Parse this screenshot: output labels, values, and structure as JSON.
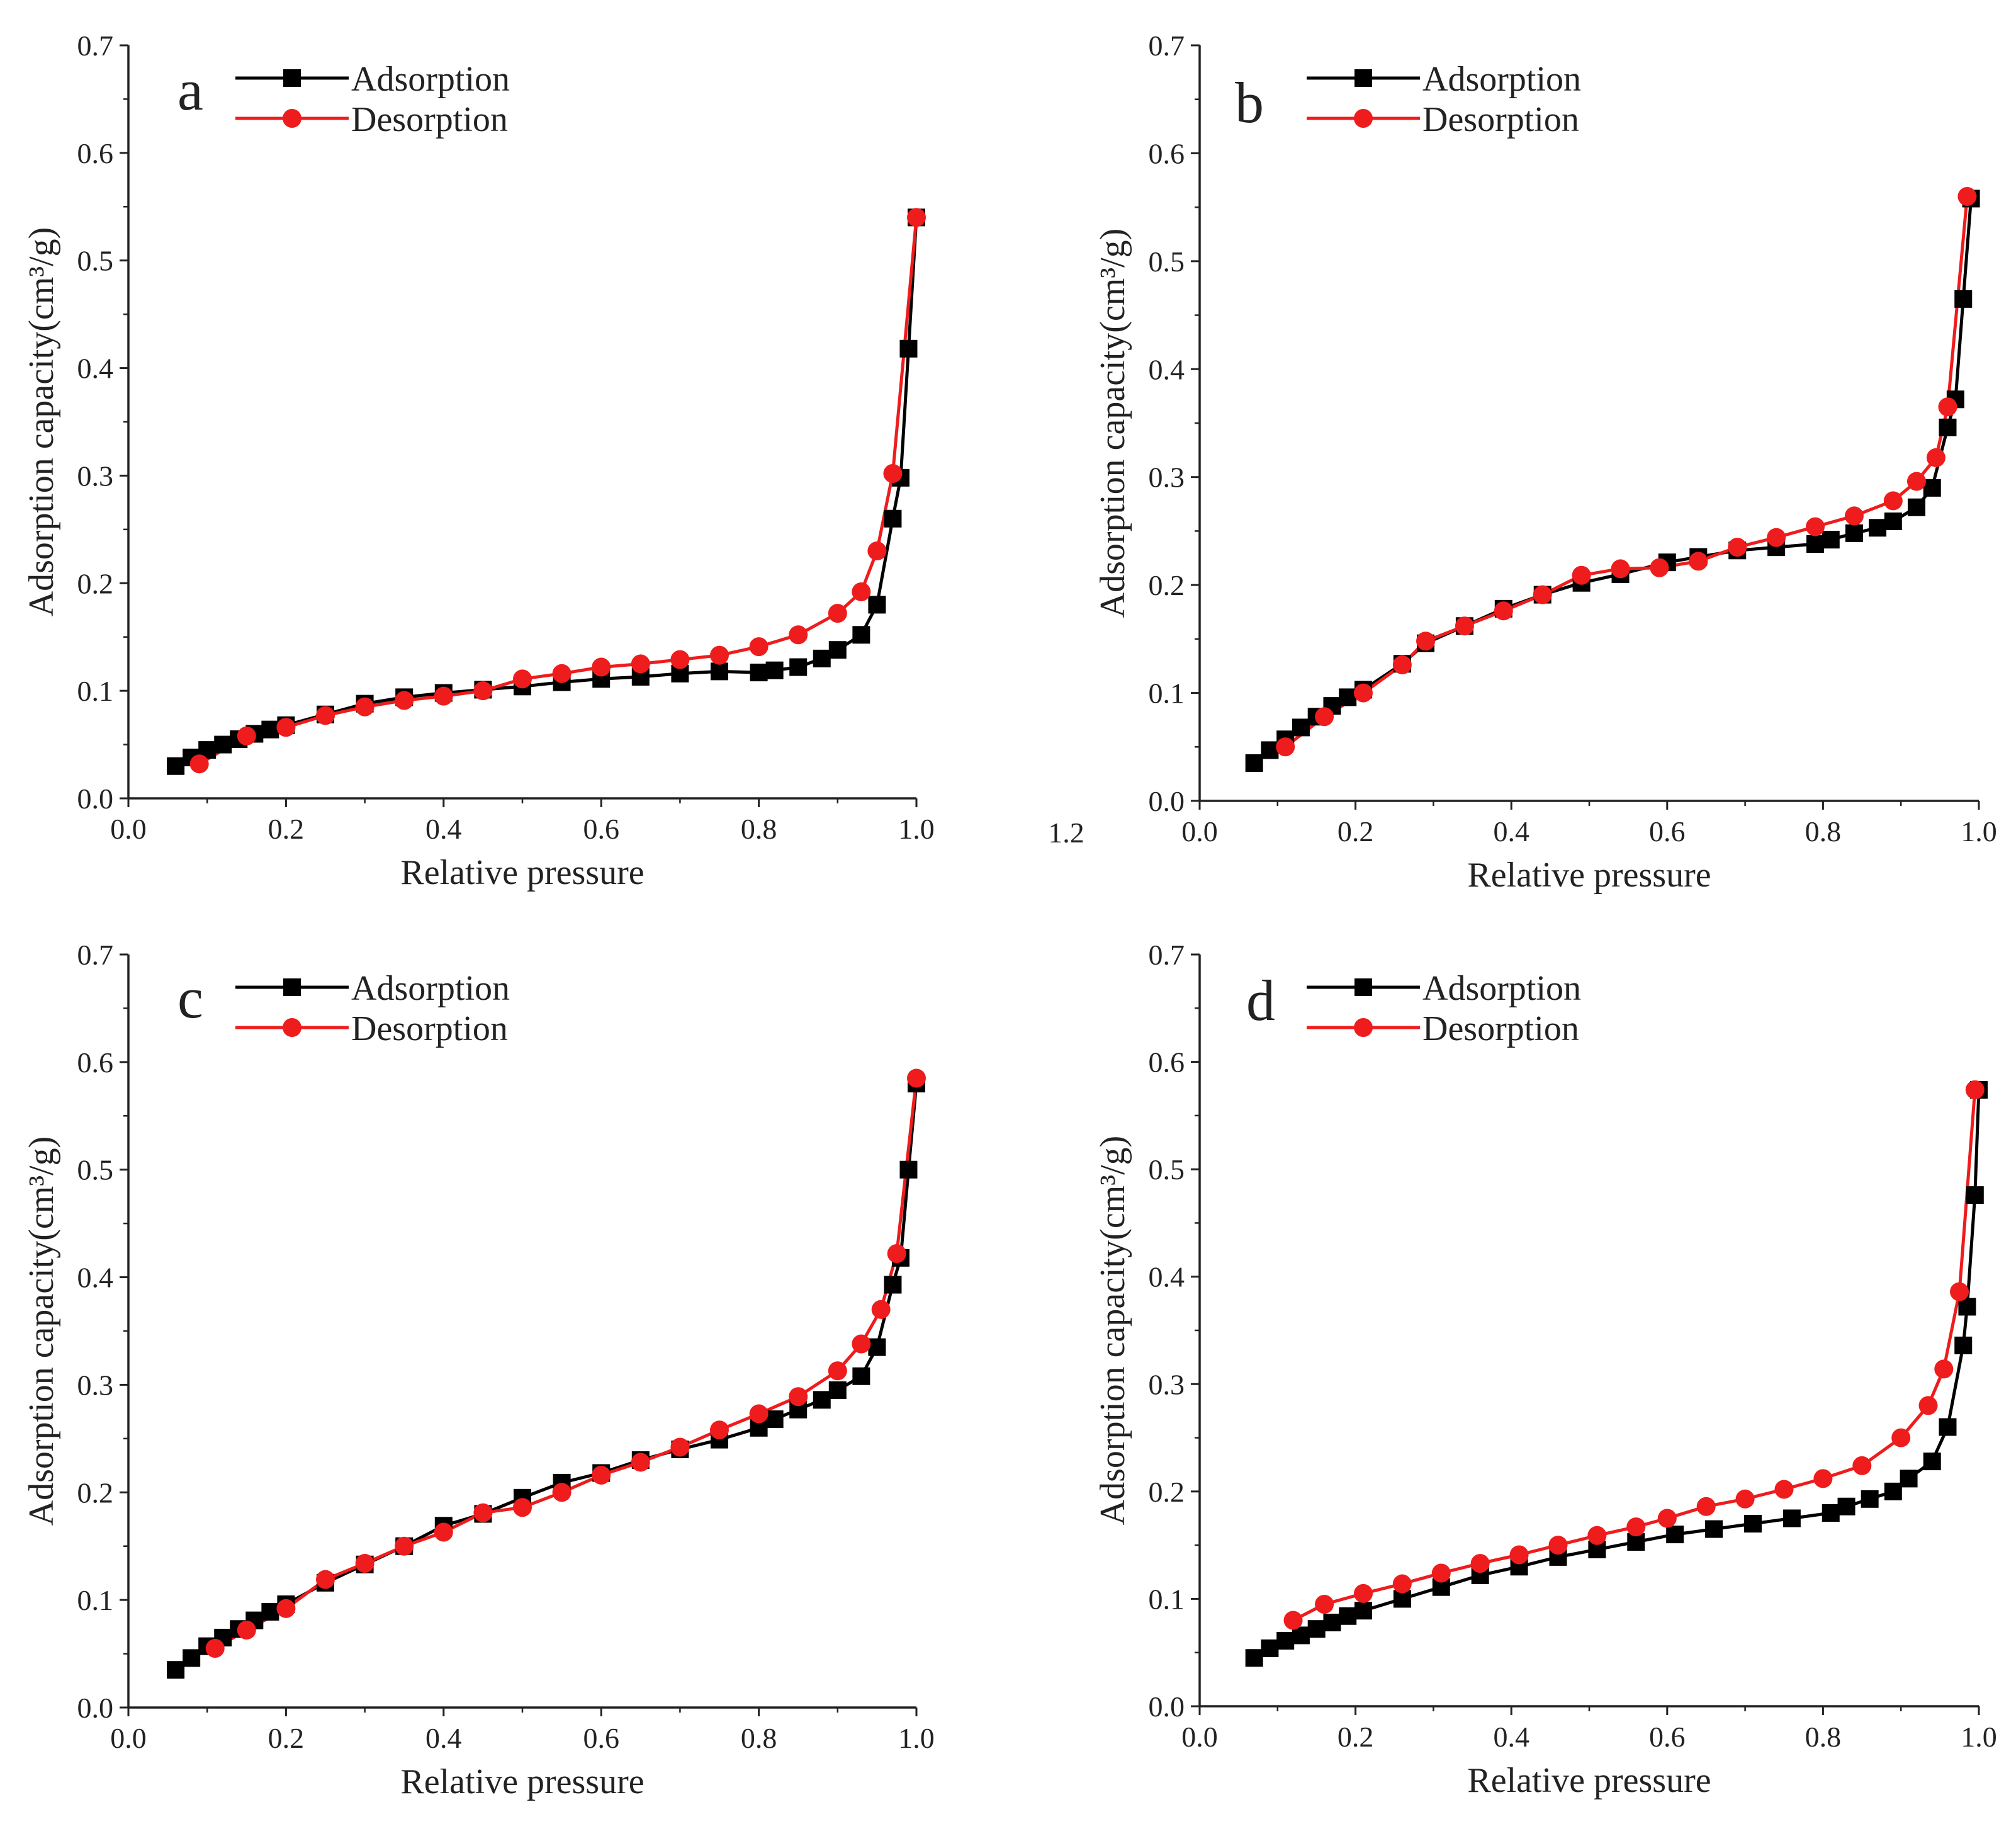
{
  "colors": {
    "adsorption": "#000000",
    "desorption": "#ee1c1c",
    "axis": "#222222"
  },
  "chart_data": [
    {
      "id": "a",
      "type": "line",
      "panel_label": "a",
      "xlabel": "Relative pressure",
      "ylabel": "Adsorption capacity(cm³/g)",
      "xlim": [
        0,
        1.0
      ],
      "ylim": [
        0,
        0.7
      ],
      "xticks": [
        "0.0",
        "0.2",
        "0.4",
        "0.6",
        "0.8",
        "1.0"
      ],
      "yticks": [
        "0.0",
        "0.1",
        "0.2",
        "0.3",
        "0.4",
        "0.5",
        "0.6",
        "0.7"
      ],
      "extra_tick_label": "1.2",
      "legend": [
        "Adsorption",
        "Desorption"
      ],
      "legend_position": "top-left",
      "series": [
        {
          "name": "Adsorption",
          "marker": "square",
          "x": [
            0.06,
            0.08,
            0.1,
            0.12,
            0.14,
            0.16,
            0.18,
            0.2,
            0.25,
            0.3,
            0.35,
            0.4,
            0.45,
            0.5,
            0.55,
            0.6,
            0.65,
            0.7,
            0.75,
            0.8,
            0.82,
            0.85,
            0.88,
            0.9,
            0.93,
            0.95,
            0.97,
            0.98,
            0.99,
            1.0
          ],
          "y": [
            0.03,
            0.038,
            0.045,
            0.05,
            0.055,
            0.06,
            0.064,
            0.068,
            0.078,
            0.088,
            0.094,
            0.098,
            0.101,
            0.104,
            0.108,
            0.111,
            0.113,
            0.116,
            0.118,
            0.117,
            0.119,
            0.122,
            0.13,
            0.138,
            0.152,
            0.18,
            0.26,
            0.298,
            0.418,
            0.54
          ]
        },
        {
          "name": "Desorption",
          "marker": "circle",
          "x": [
            1.0,
            0.97,
            0.95,
            0.93,
            0.9,
            0.85,
            0.8,
            0.75,
            0.7,
            0.65,
            0.6,
            0.55,
            0.5,
            0.45,
            0.4,
            0.35,
            0.3,
            0.25,
            0.2,
            0.15,
            0.09
          ],
          "y": [
            0.54,
            0.302,
            0.23,
            0.192,
            0.172,
            0.152,
            0.141,
            0.133,
            0.129,
            0.125,
            0.122,
            0.116,
            0.111,
            0.1,
            0.095,
            0.091,
            0.085,
            0.077,
            0.066,
            0.058,
            0.032
          ]
        }
      ]
    },
    {
      "id": "b",
      "type": "line",
      "panel_label": "b",
      "xlabel": "Relative pressure",
      "ylabel": "Adsorption capacity(cm³/g)",
      "xlim": [
        0,
        1.0
      ],
      "ylim": [
        0,
        0.7
      ],
      "xticks": [
        "0.0",
        "0.2",
        "0.4",
        "0.6",
        "0.8",
        "1.0"
      ],
      "yticks": [
        "0.0",
        "0.1",
        "0.2",
        "0.3",
        "0.4",
        "0.5",
        "0.6",
        "0.7"
      ],
      "legend": [
        "Adsorption",
        "Desorption"
      ],
      "legend_position": "top-left",
      "series": [
        {
          "name": "Adsorption",
          "marker": "square",
          "x": [
            0.07,
            0.09,
            0.11,
            0.13,
            0.15,
            0.17,
            0.19,
            0.21,
            0.26,
            0.29,
            0.34,
            0.39,
            0.44,
            0.49,
            0.54,
            0.6,
            0.64,
            0.69,
            0.74,
            0.79,
            0.81,
            0.84,
            0.87,
            0.89,
            0.92,
            0.94,
            0.96,
            0.97,
            0.98,
            0.99
          ],
          "y": [
            0.035,
            0.047,
            0.057,
            0.068,
            0.078,
            0.088,
            0.096,
            0.103,
            0.127,
            0.146,
            0.162,
            0.178,
            0.191,
            0.202,
            0.21,
            0.221,
            0.226,
            0.232,
            0.235,
            0.238,
            0.242,
            0.248,
            0.253,
            0.259,
            0.272,
            0.29,
            0.346,
            0.372,
            0.465,
            0.558
          ]
        },
        {
          "name": "Desorption",
          "marker": "circle",
          "x": [
            0.985,
            0.96,
            0.945,
            0.92,
            0.89,
            0.84,
            0.79,
            0.74,
            0.69,
            0.64,
            0.59,
            0.54,
            0.49,
            0.44,
            0.39,
            0.34,
            0.29,
            0.26,
            0.21,
            0.16,
            0.11
          ],
          "y": [
            0.56,
            0.365,
            0.318,
            0.296,
            0.278,
            0.264,
            0.254,
            0.244,
            0.235,
            0.222,
            0.216,
            0.215,
            0.209,
            0.191,
            0.176,
            0.162,
            0.148,
            0.126,
            0.1,
            0.078,
            0.05
          ]
        }
      ]
    },
    {
      "id": "c",
      "type": "line",
      "panel_label": "c",
      "xlabel": "Relative pressure",
      "ylabel": "Adsorption capacity(cm³/g)",
      "xlim": [
        0,
        1.0
      ],
      "ylim": [
        0,
        0.7
      ],
      "xticks": [
        "0.0",
        "0.2",
        "0.4",
        "0.6",
        "0.8",
        "1.0"
      ],
      "yticks": [
        "0.0",
        "0.1",
        "0.2",
        "0.3",
        "0.4",
        "0.5",
        "0.6",
        "0.7"
      ],
      "legend": [
        "Adsorption",
        "Desorption"
      ],
      "legend_position": "top-left",
      "series": [
        {
          "name": "Adsorption",
          "marker": "square",
          "x": [
            0.06,
            0.08,
            0.1,
            0.12,
            0.14,
            0.16,
            0.18,
            0.2,
            0.25,
            0.3,
            0.35,
            0.4,
            0.45,
            0.5,
            0.55,
            0.6,
            0.65,
            0.7,
            0.75,
            0.8,
            0.82,
            0.85,
            0.88,
            0.9,
            0.93,
            0.95,
            0.97,
            0.98,
            0.99,
            1.0
          ],
          "y": [
            0.035,
            0.046,
            0.057,
            0.065,
            0.073,
            0.081,
            0.089,
            0.096,
            0.116,
            0.133,
            0.15,
            0.169,
            0.18,
            0.195,
            0.209,
            0.218,
            0.23,
            0.24,
            0.249,
            0.26,
            0.268,
            0.277,
            0.286,
            0.295,
            0.308,
            0.335,
            0.393,
            0.418,
            0.5,
            0.58
          ]
        },
        {
          "name": "Desorption",
          "marker": "circle",
          "x": [
            1.0,
            0.975,
            0.955,
            0.93,
            0.9,
            0.85,
            0.8,
            0.75,
            0.7,
            0.65,
            0.6,
            0.55,
            0.5,
            0.45,
            0.4,
            0.35,
            0.3,
            0.25,
            0.2,
            0.15,
            0.11
          ],
          "y": [
            0.585,
            0.422,
            0.37,
            0.338,
            0.313,
            0.289,
            0.273,
            0.258,
            0.242,
            0.228,
            0.216,
            0.2,
            0.186,
            0.181,
            0.163,
            0.15,
            0.134,
            0.119,
            0.092,
            0.072,
            0.055
          ]
        }
      ]
    },
    {
      "id": "d",
      "type": "line",
      "panel_label": "d",
      "xlabel": "Relative pressure",
      "ylabel": "Adsorption capacity(cm³/g)",
      "xlim": [
        0,
        1.0
      ],
      "ylim": [
        0,
        0.7
      ],
      "xticks": [
        "0.0",
        "0.2",
        "0.4",
        "0.6",
        "0.8",
        "1.0"
      ],
      "yticks": [
        "0.0",
        "0.1",
        "0.2",
        "0.3",
        "0.4",
        "0.5",
        "0.6",
        "0.7"
      ],
      "legend": [
        "Adsorption",
        "Desorption"
      ],
      "legend_position": "top-left",
      "series": [
        {
          "name": "Adsorption",
          "marker": "square",
          "x": [
            0.07,
            0.09,
            0.11,
            0.13,
            0.15,
            0.17,
            0.19,
            0.21,
            0.26,
            0.31,
            0.36,
            0.41,
            0.46,
            0.51,
            0.56,
            0.61,
            0.66,
            0.71,
            0.76,
            0.81,
            0.83,
            0.86,
            0.89,
            0.91,
            0.94,
            0.96,
            0.98,
            0.985,
            0.995,
            1.0
          ],
          "y": [
            0.045,
            0.054,
            0.061,
            0.066,
            0.072,
            0.078,
            0.084,
            0.089,
            0.1,
            0.111,
            0.122,
            0.13,
            0.139,
            0.146,
            0.153,
            0.16,
            0.165,
            0.17,
            0.175,
            0.18,
            0.186,
            0.193,
            0.2,
            0.212,
            0.228,
            0.26,
            0.336,
            0.372,
            0.476,
            0.574
          ]
        },
        {
          "name": "Desorption",
          "marker": "circle",
          "x": [
            0.995,
            0.975,
            0.955,
            0.935,
            0.9,
            0.85,
            0.8,
            0.75,
            0.7,
            0.65,
            0.6,
            0.56,
            0.51,
            0.46,
            0.41,
            0.36,
            0.31,
            0.26,
            0.21,
            0.16,
            0.12
          ],
          "y": [
            0.574,
            0.386,
            0.314,
            0.28,
            0.25,
            0.224,
            0.212,
            0.202,
            0.193,
            0.186,
            0.175,
            0.167,
            0.159,
            0.15,
            0.141,
            0.133,
            0.124,
            0.114,
            0.105,
            0.095,
            0.08
          ]
        }
      ]
    }
  ]
}
